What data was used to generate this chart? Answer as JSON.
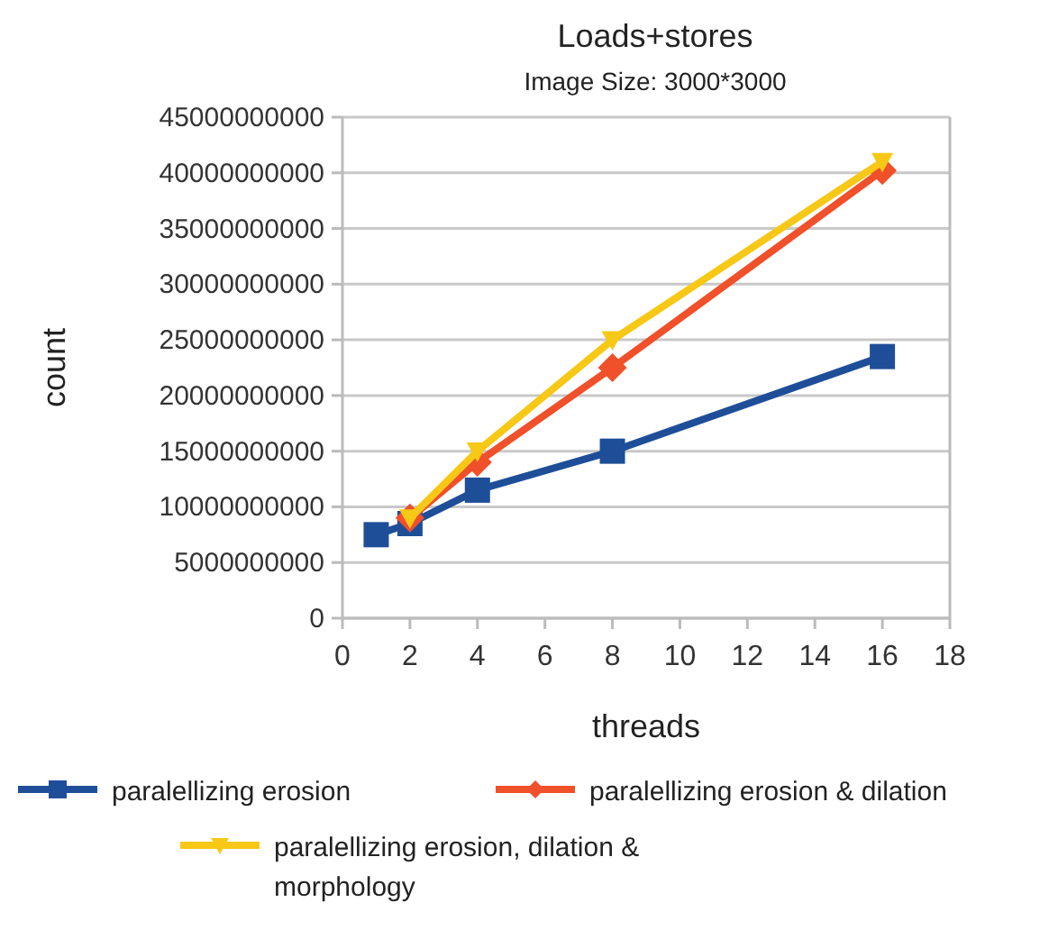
{
  "chart_data": {
    "type": "line",
    "title": "Loads+stores",
    "subtitle": "Image Size: 3000*3000",
    "xlabel": "threads",
    "ylabel": "count",
    "xlim": [
      0,
      18
    ],
    "xticks": [
      0,
      2,
      4,
      6,
      8,
      10,
      12,
      14,
      16,
      18
    ],
    "ylim": [
      0,
      45000000000
    ],
    "yticks": [
      0,
      5000000000,
      10000000000,
      15000000000,
      20000000000,
      25000000000,
      30000000000,
      35000000000,
      40000000000,
      45000000000
    ],
    "grid": "y",
    "legend": "bottom",
    "line_style": "solid",
    "series": [
      {
        "name": "paralellizing erosion",
        "color": "#1f4e99",
        "marker": "square",
        "x": [
          1,
          2,
          4,
          8,
          16
        ],
        "values": [
          7500000000,
          8500000000,
          11500000000,
          15000000000,
          23500000000
        ]
      },
      {
        "name": "paralellizing erosion & dilation",
        "color": "#f0502a",
        "marker": "diamond",
        "x": [
          2,
          4,
          8,
          16
        ],
        "values": [
          9000000000,
          14000000000,
          22500000000,
          40200000000
        ]
      },
      {
        "name": "paralellizing erosion, dilation & morphology",
        "color": "#f7c815",
        "marker": "triangle",
        "x": [
          2,
          4,
          8,
          16
        ],
        "values": [
          9000000000,
          15000000000,
          25000000000,
          41000000000
        ]
      }
    ]
  }
}
